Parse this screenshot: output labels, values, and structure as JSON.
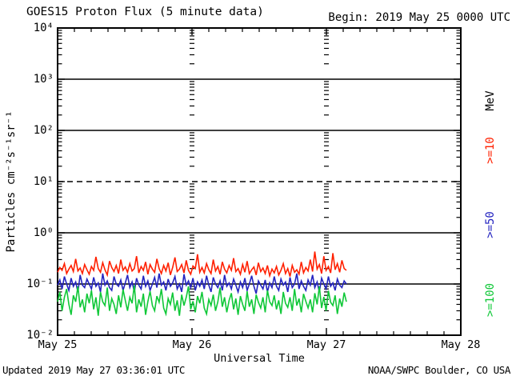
{
  "header": {
    "title": "GOES15 Proton Flux (5 minute data)",
    "begin": "Begin: 2019 May 25 0000 UTC"
  },
  "footer": {
    "updated": "Updated 2019 May 27 03:36:01 UTC",
    "source": "NOAA/SWPC Boulder, CO USA"
  },
  "axes": {
    "y_title": "Particles cm⁻²s⁻¹sr⁻¹",
    "y_ticks": [
      "10⁴",
      "10³",
      "10²",
      "10¹",
      "10⁰",
      "10⁻¹",
      "10⁻²"
    ],
    "x_ticks": [
      "May 25",
      "May 26",
      "May 27",
      "May 28"
    ],
    "x_title": "Universal Time",
    "right_unit": "MeV"
  },
  "chart_data": {
    "type": "line",
    "title": "GOES15 Proton Flux (5 minute data)",
    "xlabel": "Universal Time",
    "ylabel": "Particles cm⁻²s⁻¹sr⁻¹",
    "x_day_labels": [
      "May 25",
      "May 26",
      "May 27",
      "May 28"
    ],
    "x_range_days": [
      0,
      3
    ],
    "y_range": [
      0.01,
      10000
    ],
    "y_scale": "log",
    "solid_gridlines_at": [
      1000,
      100,
      1,
      0.1
    ],
    "dashed_threshold_at": 10,
    "vertical_gridline_days": [
      1,
      2
    ],
    "legend_unit": "MeV",
    "legend_position": "right-rotated",
    "series": [
      {
        "name": ">=10",
        "color": "#ff2000",
        "start_day": 0,
        "end_day": 2.149,
        "values": [
          0.17,
          0.21,
          0.185,
          0.25,
          0.16,
          0.195,
          0.23,
          0.175,
          0.31,
          0.18,
          0.205,
          0.16,
          0.24,
          0.19,
          0.155,
          0.22,
          0.185,
          0.34,
          0.2,
          0.17,
          0.26,
          0.19,
          0.15,
          0.28,
          0.21,
          0.175,
          0.23,
          0.16,
          0.3,
          0.185,
          0.215,
          0.17,
          0.25,
          0.18,
          0.2,
          0.35,
          0.165,
          0.22,
          0.185,
          0.27,
          0.155,
          0.24,
          0.195,
          0.17,
          0.31,
          0.2,
          0.16,
          0.23,
          0.18,
          0.26,
          0.15,
          0.21,
          0.33,
          0.175,
          0.195,
          0.24,
          0.165,
          0.29,
          0.185,
          0.155,
          0.225,
          0.2,
          0.38,
          0.17,
          0.21,
          0.165,
          0.25,
          0.19,
          0.16,
          0.3,
          0.18,
          0.22,
          0.155,
          0.27,
          0.195,
          0.165,
          0.23,
          0.185,
          0.32,
          0.175,
          0.2,
          0.155,
          0.24,
          0.17,
          0.28,
          0.16,
          0.19,
          0.215,
          0.15,
          0.26,
          0.175,
          0.205,
          0.16,
          0.23,
          0.145,
          0.195,
          0.165,
          0.22,
          0.15,
          0.185,
          0.25,
          0.16,
          0.2,
          0.14,
          0.23,
          0.17,
          0.19,
          0.155,
          0.27,
          0.165,
          0.21,
          0.18,
          0.3,
          0.175,
          0.43,
          0.195,
          0.24,
          0.16,
          0.35,
          0.185,
          0.22,
          0.165,
          0.4,
          0.19,
          0.25,
          0.17,
          0.29,
          0.2,
          0.185
        ]
      },
      {
        "name": ">=50",
        "color": "#2424c0",
        "start_day": 0,
        "end_day": 2.149,
        "values": [
          0.095,
          0.12,
          0.08,
          0.14,
          0.1,
          0.075,
          0.13,
          0.09,
          0.11,
          0.07,
          0.15,
          0.095,
          0.085,
          0.125,
          0.1,
          0.08,
          0.135,
          0.09,
          0.105,
          0.07,
          0.16,
          0.095,
          0.115,
          0.085,
          0.075,
          0.14,
          0.1,
          0.09,
          0.12,
          0.075,
          0.105,
          0.15,
          0.085,
          0.11,
          0.07,
          0.13,
          0.095,
          0.08,
          0.145,
          0.09,
          0.115,
          0.075,
          0.1,
          0.135,
          0.085,
          0.16,
          0.095,
          0.11,
          0.075,
          0.125,
          0.09,
          0.105,
          0.14,
          0.08,
          0.1,
          0.07,
          0.155,
          0.095,
          0.115,
          0.085,
          0.13,
          0.075,
          0.11,
          0.09,
          0.12,
          0.08,
          0.145,
          0.095,
          0.07,
          0.135,
          0.1,
          0.085,
          0.115,
          0.075,
          0.15,
          0.09,
          0.105,
          0.08,
          0.125,
          0.095,
          0.07,
          0.11,
          0.085,
          0.13,
          0.075,
          0.1,
          0.145,
          0.09,
          0.065,
          0.115,
          0.095,
          0.08,
          0.12,
          0.07,
          0.105,
          0.085,
          0.14,
          0.09,
          0.075,
          0.125,
          0.095,
          0.11,
          0.07,
          0.135,
          0.085,
          0.1,
          0.16,
          0.08,
          0.115,
          0.09,
          0.075,
          0.12,
          0.095,
          0.15,
          0.085,
          0.11,
          0.07,
          0.13,
          0.1,
          0.08,
          0.14,
          0.09,
          0.105,
          0.075,
          0.125,
          0.095,
          0.085,
          0.115,
          0.1
        ]
      },
      {
        "name": ">=100",
        "color": "#10c838",
        "start_day": 0,
        "end_day": 2.149,
        "values": [
          0.045,
          0.07,
          0.03,
          0.055,
          0.08,
          0.04,
          0.025,
          0.06,
          0.045,
          0.09,
          0.035,
          0.05,
          0.028,
          0.065,
          0.042,
          0.075,
          0.032,
          0.055,
          0.024,
          0.07,
          0.045,
          0.038,
          0.085,
          0.03,
          0.052,
          0.04,
          0.026,
          0.06,
          0.035,
          0.078,
          0.048,
          0.03,
          0.055,
          0.042,
          0.095,
          0.028,
          0.05,
          0.036,
          0.065,
          0.025,
          0.045,
          0.072,
          0.038,
          0.03,
          0.058,
          0.044,
          0.08,
          0.034,
          0.026,
          0.052,
          0.04,
          0.068,
          0.03,
          0.048,
          0.024,
          0.062,
          0.038,
          0.055,
          0.09,
          0.032,
          0.046,
          0.028,
          0.058,
          0.042,
          0.07,
          0.034,
          0.026,
          0.05,
          0.038,
          0.062,
          0.03,
          0.045,
          0.085,
          0.036,
          0.055,
          0.028,
          0.048,
          0.066,
          0.032,
          0.052,
          0.025,
          0.058,
          0.04,
          0.03,
          0.072,
          0.036,
          0.05,
          0.026,
          0.062,
          0.044,
          0.034,
          0.055,
          0.028,
          0.075,
          0.045,
          0.038,
          0.06,
          0.032,
          0.048,
          0.026,
          0.07,
          0.042,
          0.035,
          0.055,
          0.03,
          0.08,
          0.038,
          0.052,
          0.028,
          0.064,
          0.046,
          0.034,
          0.05,
          0.028,
          0.066,
          0.04,
          0.09,
          0.034,
          0.056,
          0.03,
          0.074,
          0.044,
          0.038,
          0.06,
          0.026,
          0.052,
          0.036,
          0.068,
          0.045
        ]
      }
    ]
  }
}
